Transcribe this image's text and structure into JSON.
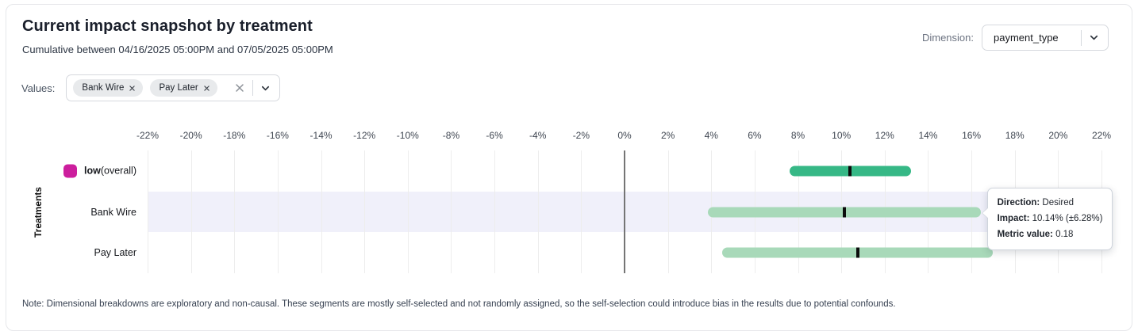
{
  "header": {
    "title": "Current impact snapshot by treatment",
    "subtitle": "Cumulative between 04/16/2025 05:00PM and 07/05/2025 05:00PM",
    "dimension_label": "Dimension:",
    "dimension_value": "payment_type"
  },
  "filters": {
    "values_label": "Values:",
    "chips": [
      {
        "label": "Bank Wire"
      },
      {
        "label": "Pay Later"
      }
    ]
  },
  "chart_data": {
    "type": "range-bar",
    "y_axis_label": "Treatments",
    "x_axis": {
      "unit": "%",
      "min": -22,
      "max": 22,
      "tick_step": 2,
      "ticks": [
        {
          "value": -22,
          "label": "-22%"
        },
        {
          "value": -20,
          "label": "-20%"
        },
        {
          "value": -18,
          "label": "-18%"
        },
        {
          "value": -16,
          "label": "-16%"
        },
        {
          "value": -14,
          "label": "-14%"
        },
        {
          "value": -12,
          "label": "-12%"
        },
        {
          "value": -10,
          "label": "-10%"
        },
        {
          "value": -8,
          "label": "-8%"
        },
        {
          "value": -6,
          "label": "-6%"
        },
        {
          "value": -4,
          "label": "-4%"
        },
        {
          "value": -2,
          "label": "-2%"
        },
        {
          "value": 0,
          "label": "0%"
        },
        {
          "value": 2,
          "label": "2%"
        },
        {
          "value": 4,
          "label": "4%"
        },
        {
          "value": 6,
          "label": "6%"
        },
        {
          "value": 8,
          "label": "8%"
        },
        {
          "value": 10,
          "label": "10%"
        },
        {
          "value": 12,
          "label": "12%"
        },
        {
          "value": 14,
          "label": "14%"
        },
        {
          "value": 16,
          "label": "16%"
        },
        {
          "value": 18,
          "label": "18%"
        },
        {
          "value": 20,
          "label": "20%"
        },
        {
          "value": 22,
          "label": "22%"
        }
      ]
    },
    "rows": [
      {
        "label": "low",
        "label_suffix": " (overall)",
        "label_bold": true,
        "swatch_color": "#cc1e9d",
        "bar_color": "#36b886",
        "impact_pct": 10.4,
        "ci_low_pct": 7.6,
        "ci_high_pct": 13.2,
        "highlighted": false
      },
      {
        "label": "Bank Wire",
        "label_suffix": "",
        "label_bold": false,
        "swatch_color": null,
        "bar_color": "#a8d9b9",
        "impact_pct": 10.14,
        "ci_low_pct": 3.86,
        "ci_high_pct": 16.42,
        "highlighted": true
      },
      {
        "label": "Pay Later",
        "label_suffix": "",
        "label_bold": false,
        "swatch_color": null,
        "bar_color": "#a8d9b9",
        "impact_pct": 10.75,
        "ci_low_pct": 4.5,
        "ci_high_pct": 17.0,
        "highlighted": false
      }
    ]
  },
  "tooltip": {
    "anchor_row": "Bank Wire",
    "anchor_row_index": 1,
    "lines": [
      {
        "label": "Direction:",
        "value": "Desired"
      },
      {
        "label": "Impact:",
        "value": "10.14% (±6.28%)"
      },
      {
        "label": "Metric value:",
        "value": "0.18"
      }
    ]
  },
  "note": "Note: Dimensional breakdowns are exploratory and non-causal. These segments are mostly self-selected and not randomly assigned, so the self-selection could introduce bias in the results due to potential confounds.",
  "colors": {
    "overall_bar": "#36b886",
    "segment_bar": "#a8d9b9",
    "legend_swatch": "#cc1e9d",
    "row_highlight": "#f0f0fa",
    "impact_marker": "#0c0c0c"
  }
}
